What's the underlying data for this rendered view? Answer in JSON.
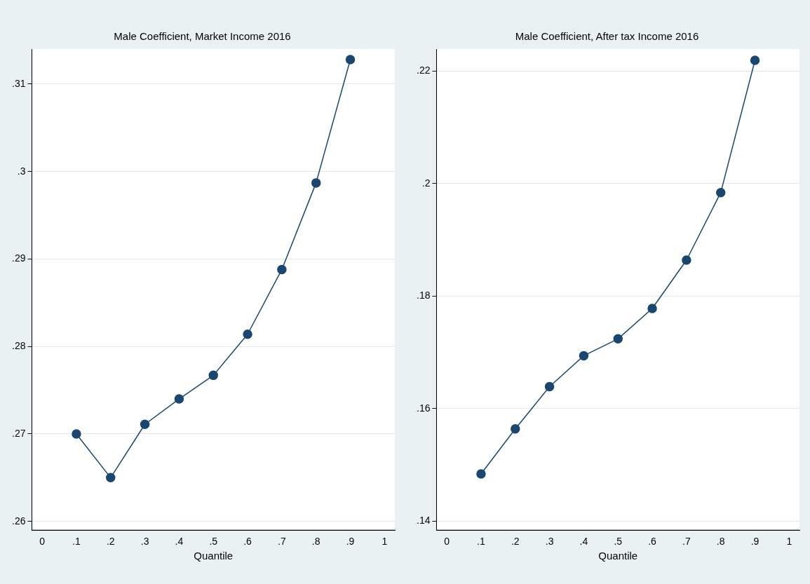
{
  "chart_data": [
    {
      "type": "line",
      "title": "Male Coefficient, Market Income 2016",
      "xlabel": "Quantile",
      "x": [
        0.1,
        0.2,
        0.3,
        0.4,
        0.5,
        0.6,
        0.7,
        0.8,
        0.9
      ],
      "series": [
        {
          "color": "#1a476f",
          "values": [
            0.27,
            0.265,
            0.2711,
            0.274,
            0.2767,
            0.2814,
            0.2888,
            0.2987,
            0.3128
          ]
        }
      ],
      "xlim": [
        -0.03,
        1.03
      ],
      "xticks": [
        {
          "value": 0,
          "label": "0"
        },
        {
          "value": 0.1,
          "label": ".1"
        },
        {
          "value": 0.2,
          "label": ".2"
        },
        {
          "value": 0.3,
          "label": ".3"
        },
        {
          "value": 0.4,
          "label": ".4"
        },
        {
          "value": 0.5,
          "label": ".5"
        },
        {
          "value": 0.6,
          "label": ".6"
        },
        {
          "value": 0.7,
          "label": ".7"
        },
        {
          "value": 0.8,
          "label": ".8"
        },
        {
          "value": 0.9,
          "label": ".9"
        },
        {
          "value": 1,
          "label": "1"
        }
      ],
      "ylim": [
        0.259,
        0.314
      ],
      "yticks": [
        {
          "value": 0.26,
          "label": ".26"
        },
        {
          "value": 0.27,
          "label": ".27"
        },
        {
          "value": 0.28,
          "label": ".28"
        },
        {
          "value": 0.29,
          "label": ".29"
        },
        {
          "value": 0.3,
          "label": ".3"
        },
        {
          "value": 0.31,
          "label": ".31"
        }
      ],
      "grid": "y",
      "marker": "circle",
      "line_style": "solid",
      "legend": false
    },
    {
      "type": "line",
      "title": "Male Coefficient, After tax Income 2016",
      "xlabel": "Quantile",
      "x": [
        0.1,
        0.2,
        0.3,
        0.4,
        0.5,
        0.6,
        0.7,
        0.8,
        0.9
      ],
      "series": [
        {
          "color": "#1a476f",
          "values": [
            0.1484,
            0.1564,
            0.1639,
            0.1694,
            0.1724,
            0.1778,
            0.1864,
            0.1984,
            0.2219
          ]
        }
      ],
      "xlim": [
        -0.03,
        1.03
      ],
      "xticks": [
        {
          "value": 0,
          "label": "0"
        },
        {
          "value": 0.1,
          "label": ".1"
        },
        {
          "value": 0.2,
          "label": ".2"
        },
        {
          "value": 0.3,
          "label": ".3"
        },
        {
          "value": 0.4,
          "label": ".4"
        },
        {
          "value": 0.5,
          "label": ".5"
        },
        {
          "value": 0.6,
          "label": ".6"
        },
        {
          "value": 0.7,
          "label": ".7"
        },
        {
          "value": 0.8,
          "label": ".8"
        },
        {
          "value": 0.9,
          "label": ".9"
        },
        {
          "value": 1,
          "label": "1"
        }
      ],
      "ylim": [
        0.1384,
        0.2239
      ],
      "yticks": [
        {
          "value": 0.14,
          "label": ".14"
        },
        {
          "value": 0.16,
          "label": ".16"
        },
        {
          "value": 0.18,
          "label": ".18"
        },
        {
          "value": 0.2,
          "label": ".2"
        },
        {
          "value": 0.22,
          "label": ".22"
        }
      ],
      "grid": "y",
      "marker": "circle",
      "line_style": "solid",
      "legend": false
    }
  ]
}
